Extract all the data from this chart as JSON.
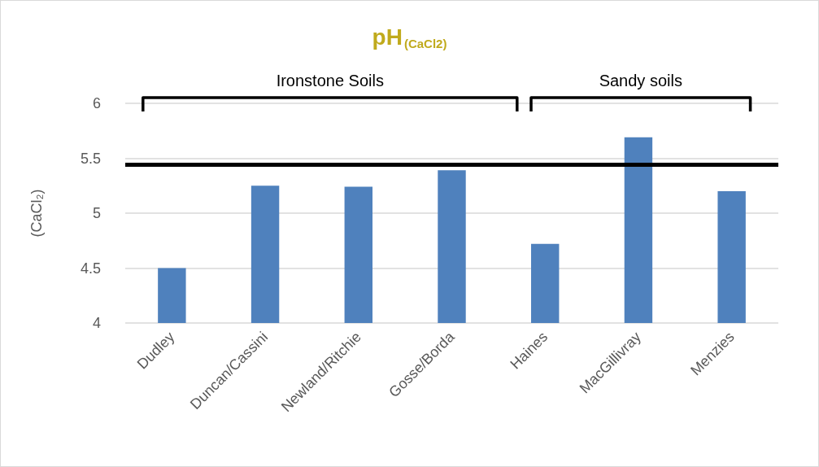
{
  "chart_data": {
    "type": "bar",
    "title": "pH$_{(CaCl2)}$",
    "ylabel": "(CaCl₂)",
    "categories": [
      "Dudley",
      "Duncan/Cassini",
      "Newland/Ritchie",
      "Gosse/Borda",
      "Haines",
      "MacGillivray",
      "Menzies"
    ],
    "values": [
      4.5,
      5.25,
      5.24,
      5.39,
      4.72,
      5.69,
      5.2
    ],
    "color": "#4f81bd",
    "ylim": [
      4,
      6
    ],
    "yticks": [
      4,
      4.5,
      5,
      5.5,
      6
    ],
    "grid": "y",
    "ref_lines": [
      {
        "axis": "y",
        "value": 5.44,
        "color": "#000000"
      }
    ],
    "annotations": [
      "Ironstone Soils",
      "Sandy soils"
    ]
  }
}
